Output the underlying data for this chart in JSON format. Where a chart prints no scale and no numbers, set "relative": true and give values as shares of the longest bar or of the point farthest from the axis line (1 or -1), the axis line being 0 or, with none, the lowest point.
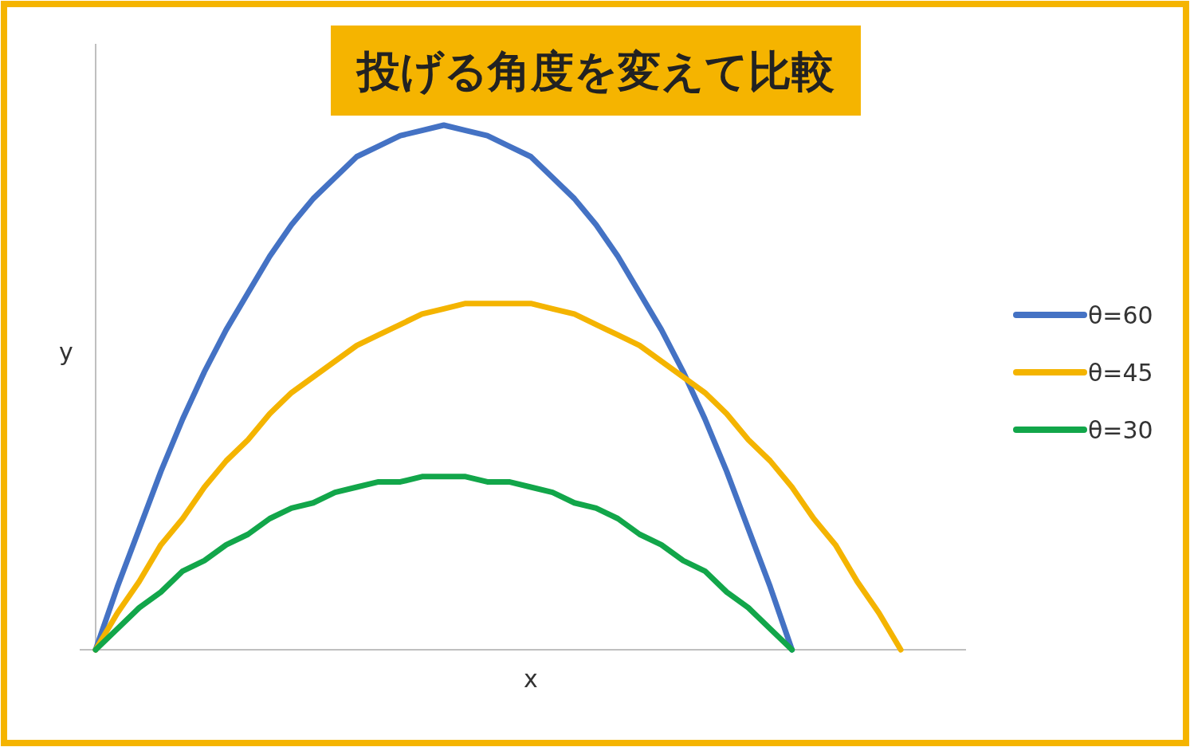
{
  "chart_data": {
    "type": "line",
    "title": "投げる角度を変えて比較",
    "xlabel": "x",
    "ylabel": "y",
    "relative": true,
    "legend": "right",
    "categories": [
      null,
      null,
      null,
      null,
      null,
      null,
      null,
      null,
      null,
      null,
      null,
      null,
      null,
      null,
      null,
      null,
      null,
      null,
      null,
      null,
      null,
      null,
      null,
      null,
      null,
      null,
      null,
      null,
      null,
      null,
      null,
      null,
      null,
      null,
      null,
      null,
      null,
      null,
      null,
      null,
      null
    ],
    "series": [
      {
        "name": "θ=60",
        "color": "#4472c4",
        "values": [
          0,
          0.12,
          0.23,
          0.34,
          0.44,
          0.53,
          0.61,
          0.68,
          0.75,
          0.81,
          0.86,
          0.9,
          0.94,
          0.96,
          0.98,
          0.99,
          1,
          0.99,
          0.98,
          0.96,
          0.94,
          0.9,
          0.86,
          0.81,
          0.75,
          0.68,
          0.61,
          0.53,
          0.44,
          0.34,
          0.23,
          0.12,
          0,
          null,
          null,
          null,
          null,
          null,
          null,
          null,
          null
        ]
      },
      {
        "name": "θ=45",
        "color": "#f4b400",
        "values": [
          0,
          0.07,
          0.13,
          0.2,
          0.25,
          0.31,
          0.36,
          0.4,
          0.45,
          0.49,
          0.52,
          0.55,
          0.58,
          0.6,
          0.62,
          0.64,
          0.65,
          0.66,
          0.66,
          0.66,
          0.66,
          0.65,
          0.64,
          0.62,
          0.6,
          0.58,
          0.55,
          0.52,
          0.49,
          0.45,
          0.4,
          0.36,
          0.31,
          0.25,
          0.2,
          0.13,
          0.07,
          0,
          null,
          null,
          null
        ]
      },
      {
        "name": "θ=30",
        "color": "#12a64a",
        "values": [
          0,
          0.04,
          0.08,
          0.11,
          0.15,
          0.17,
          0.2,
          0.22,
          0.25,
          0.27,
          0.28,
          0.3,
          0.31,
          0.32,
          0.32,
          0.33,
          0.33,
          0.33,
          0.32,
          0.32,
          0.31,
          0.3,
          0.28,
          0.27,
          0.25,
          0.22,
          0.2,
          0.17,
          0.15,
          0.11,
          0.08,
          0.04,
          0,
          null,
          null,
          null,
          null,
          null,
          null,
          null,
          null
        ]
      }
    ]
  }
}
